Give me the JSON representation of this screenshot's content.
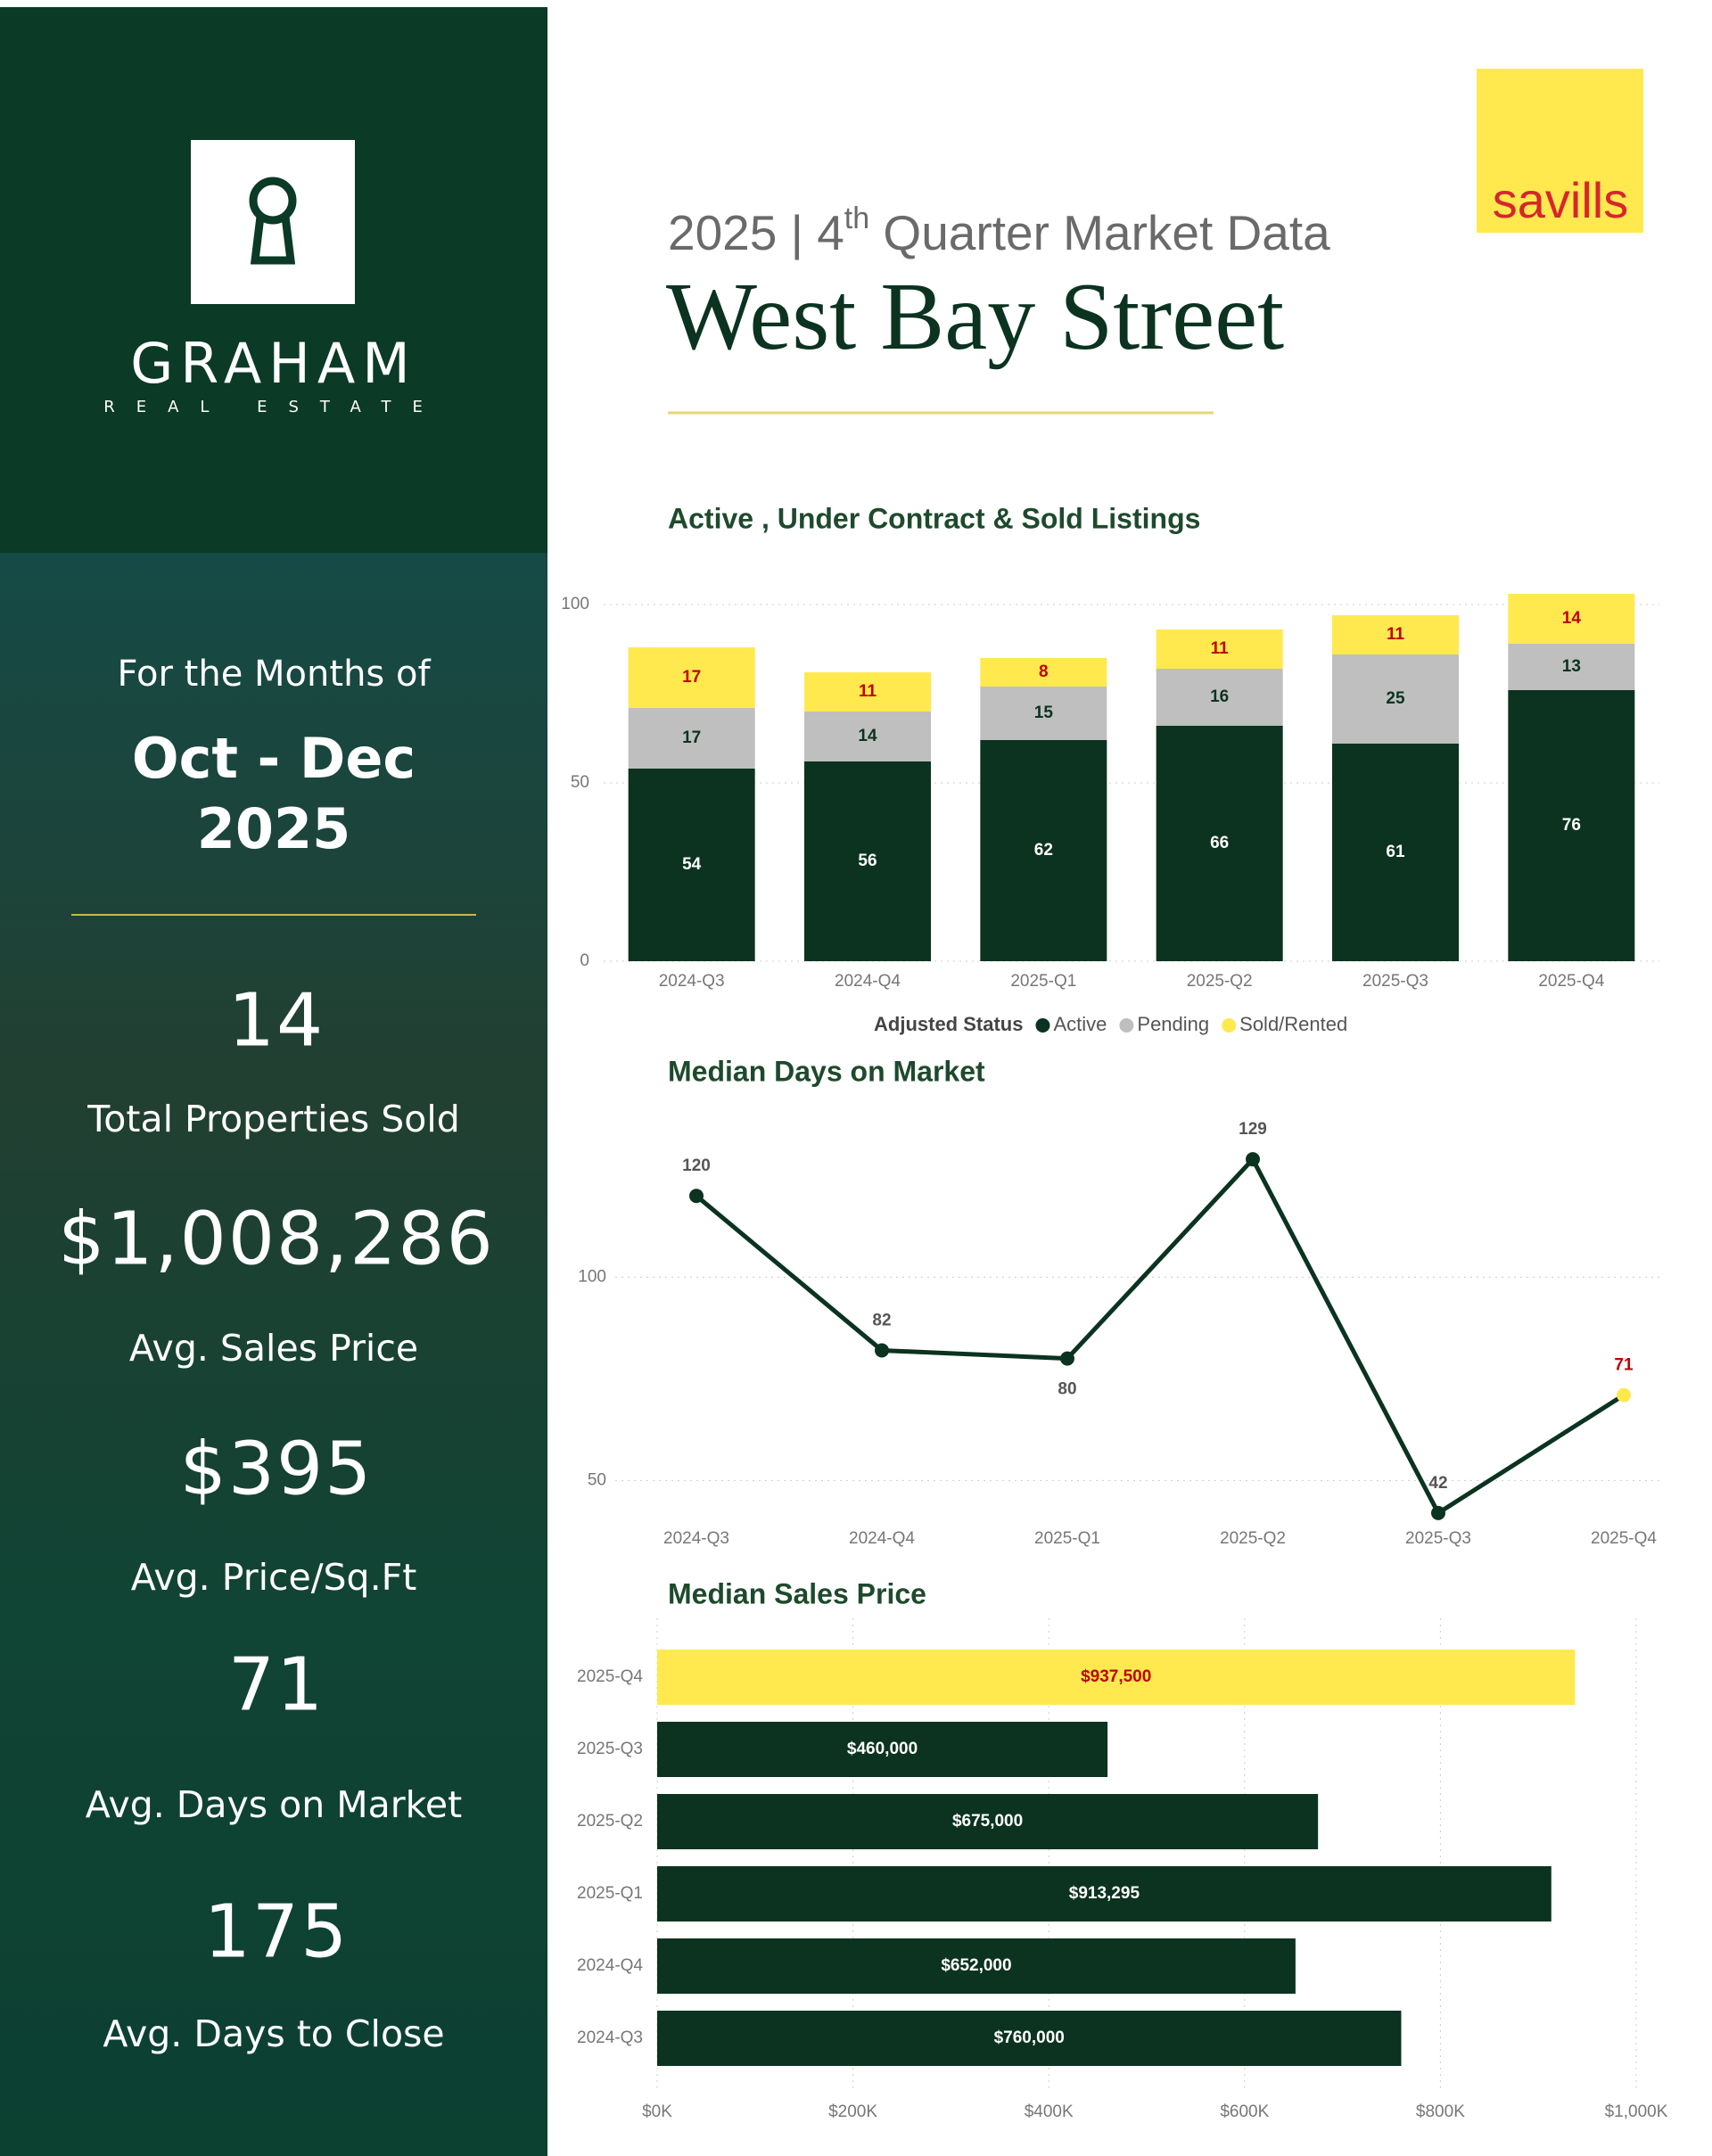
{
  "sidebar": {
    "brand": "GRAHAM",
    "brand_sub": "REAL ESTATE",
    "period_intro": "For the Months of",
    "period": "Oct - Dec",
    "year": "2025",
    "stats": [
      {
        "value": "14",
        "label": "Total Properties Sold"
      },
      {
        "value": "$1,008,286",
        "label": "Avg. Sales Price"
      },
      {
        "value": "$395",
        "label": "Avg. Price/Sq.Ft"
      },
      {
        "value": "71",
        "label": "Avg. Days on Market"
      },
      {
        "value": "175",
        "label": "Avg. Days to Close"
      }
    ]
  },
  "header": {
    "title_pre": "2025 | 4",
    "title_sup": "th",
    "title_post": " Quarter Market Data",
    "subtitle": "West Bay Street",
    "logo": "savills"
  },
  "chart_data": [
    {
      "type": "stacked_bar",
      "title": "Active , Under Contract & Sold Listings",
      "categories": [
        "2024-Q3",
        "2024-Q4",
        "2025-Q1",
        "2025-Q2",
        "2025-Q3",
        "2025-Q4"
      ],
      "series": [
        {
          "name": "Active",
          "color": "#0b3320",
          "label_color": "#ffffff",
          "values": [
            54,
            56,
            62,
            66,
            61,
            76
          ]
        },
        {
          "name": "Pending",
          "color": "#bfbfbf",
          "label_color": "#0b3320",
          "values": [
            17,
            14,
            15,
            16,
            25,
            13
          ]
        },
        {
          "name": "Sold/Rented",
          "color": "#ffe94f",
          "label_color": "#c00000",
          "values": [
            17,
            11,
            8,
            11,
            11,
            14
          ]
        }
      ],
      "legend_title": "Adjusted Status",
      "ylim": [
        0,
        105
      ],
      "yticks": [
        0,
        50,
        100
      ],
      "grid": true
    },
    {
      "type": "line",
      "title": "Median Days on Market",
      "categories": [
        "2024-Q3",
        "2024-Q4",
        "2025-Q1",
        "2025-Q2",
        "2025-Q3",
        "2025-Q4"
      ],
      "values": [
        120,
        82,
        80,
        129,
        42,
        71
      ],
      "color": "#0b3320",
      "marker_colors": [
        "#0b3320",
        "#0b3320",
        "#0b3320",
        "#0b3320",
        "#0b3320",
        "#ffe94f"
      ],
      "label_colors": [
        "#555555",
        "#555555",
        "#555555",
        "#555555",
        "#555555",
        "#c00000"
      ],
      "label_positions": [
        "above",
        "above",
        "below",
        "above",
        "above",
        "above"
      ],
      "ylim": [
        40,
        140
      ],
      "yticks": [
        50,
        100
      ],
      "grid": true
    },
    {
      "type": "hbar",
      "title": "Median Sales Price",
      "categories": [
        "2025-Q4",
        "2025-Q3",
        "2025-Q2",
        "2025-Q1",
        "2024-Q4",
        "2024-Q3"
      ],
      "values": [
        937500,
        460000,
        675000,
        913295,
        652000,
        760000
      ],
      "value_labels": [
        "$937,500",
        "$460,000",
        "$675,000",
        "$913,295",
        "$652,000",
        "$760,000"
      ],
      "colors": [
        "#ffe94f",
        "#0b3320",
        "#0b3320",
        "#0b3320",
        "#0b3320",
        "#0b3320"
      ],
      "label_colors": [
        "#c00000",
        "#ffffff",
        "#ffffff",
        "#ffffff",
        "#ffffff",
        "#ffffff"
      ],
      "xlim": [
        0,
        1000000
      ],
      "xticks": [
        {
          "value": 0,
          "label": "$0K"
        },
        {
          "value": 200000,
          "label": "$200K"
        },
        {
          "value": 400000,
          "label": "$400K"
        },
        {
          "value": 600000,
          "label": "$600K"
        },
        {
          "value": 800000,
          "label": "$800K"
        },
        {
          "value": 1000000,
          "label": "$1,000K"
        }
      ],
      "grid": true
    }
  ]
}
